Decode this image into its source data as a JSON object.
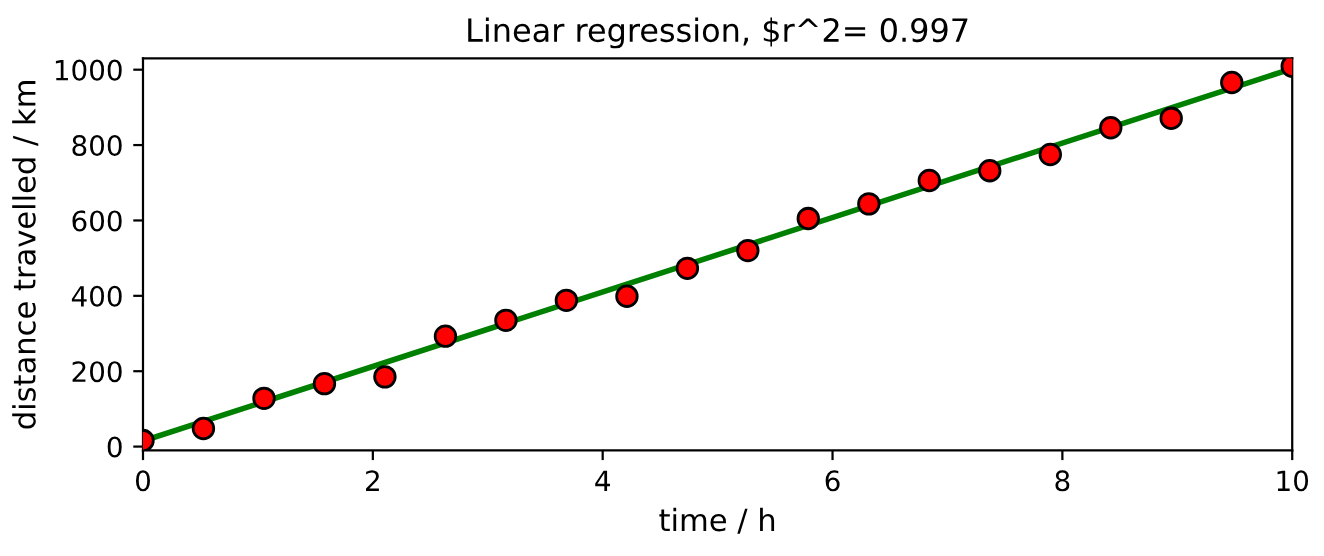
{
  "chart_data": {
    "type": "scatter",
    "title": "Linear regression, $r^2= 0.997",
    "xlabel": "time / h",
    "ylabel": "distance travelled / km",
    "x": [
      0,
      0.526,
      1.053,
      1.579,
      2.105,
      2.632,
      3.158,
      3.684,
      4.211,
      4.737,
      5.263,
      5.789,
      6.316,
      6.842,
      7.368,
      7.895,
      8.421,
      8.947,
      9.474,
      10
    ],
    "series": [
      {
        "color": "#ff0000",
        "marker": "circle",
        "values": [
          16,
          48,
          128,
          167,
          185,
          293,
          335,
          388,
          399,
          473,
          520,
          605,
          644,
          706,
          732,
          775,
          846,
          871,
          966,
          1009
        ]
      },
      {
        "type": "line",
        "color": "#008000",
        "x": [
          0,
          10
        ],
        "values": [
          15,
          1003
        ]
      }
    ],
    "xlim": [
      0,
      10
    ],
    "ylim": [
      -10,
      1030
    ],
    "xticks": [
      0,
      2,
      4,
      6,
      8,
      10
    ],
    "yticks": [
      0,
      200,
      400,
      600,
      800,
      1000
    ],
    "grid": false,
    "legend": false
  }
}
